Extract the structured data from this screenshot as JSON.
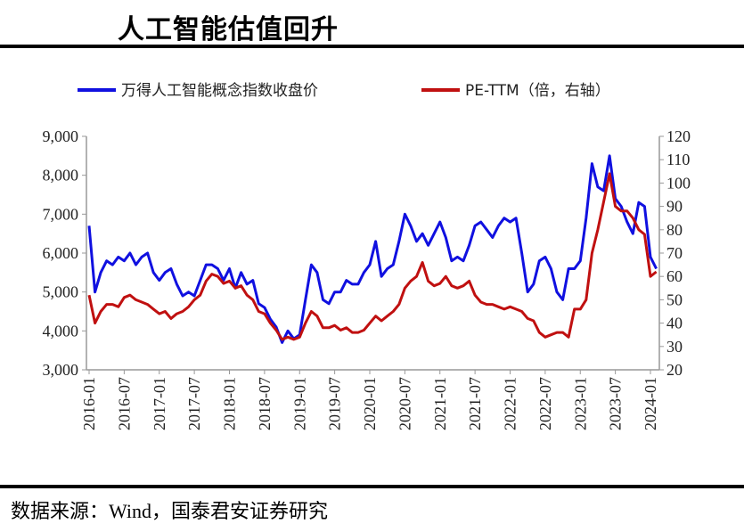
{
  "title": "人工智能估值回升",
  "source": "数据来源：Wind，国泰君安证券研究",
  "chart_data": {
    "type": "line",
    "title": "人工智能估值回升",
    "grid": false,
    "legend_position": "top",
    "x_tick_labels": [
      "2016-01",
      "2016-07",
      "2017-01",
      "2017-07",
      "2018-01",
      "2018-07",
      "2019-01",
      "2019-07",
      "2020-01",
      "2020-07",
      "2021-01",
      "2021-07",
      "2022-01",
      "2022-07",
      "2023-01",
      "2023-07",
      "2024-01"
    ],
    "y_left": {
      "range": [
        3000,
        9000
      ],
      "ticks": [
        "3,000",
        "4,000",
        "5,000",
        "6,000",
        "7,000",
        "8,000",
        "9,000"
      ]
    },
    "y_right": {
      "range": [
        20,
        120
      ],
      "ticks": [
        "20",
        "30",
        "40",
        "50",
        "60",
        "70",
        "80",
        "90",
        "100",
        "110",
        "120"
      ]
    },
    "x_start": "2016-01",
    "x_frequency": "monthly",
    "series": [
      {
        "name": "万得人工智能概念指数收盘价",
        "axis": "left",
        "color": "#1010e0",
        "values": [
          6700,
          5000,
          5500,
          5800,
          5700,
          5900,
          5800,
          6000,
          5700,
          5900,
          6000,
          5500,
          5300,
          5500,
          5600,
          5200,
          4900,
          5000,
          4900,
          5300,
          5700,
          5700,
          5600,
          5300,
          5600,
          5100,
          5500,
          5200,
          5300,
          4700,
          4600,
          4300,
          4100,
          3700,
          4000,
          3800,
          3900,
          4800,
          5700,
          5500,
          4800,
          4700,
          5000,
          5000,
          5300,
          5200,
          5200,
          5500,
          5700,
          6300,
          5400,
          5600,
          5700,
          6300,
          7000,
          6700,
          6300,
          6500,
          6200,
          6500,
          6800,
          6400,
          5800,
          5900,
          5800,
          6200,
          6700,
          6800,
          6600,
          6400,
          6700,
          6900,
          6800,
          6900,
          6000,
          5000,
          5200,
          5800,
          5900,
          5600,
          5000,
          4800,
          5600,
          5600,
          5800,
          6900,
          8300,
          7700,
          7600,
          8500,
          7400,
          7200,
          6800,
          6500,
          7300,
          7200,
          5900,
          5600
        ]
      },
      {
        "name": "PE-TTM（倍，右轴）",
        "axis": "right",
        "color": "#c01010",
        "values": [
          52,
          40,
          45,
          48,
          48,
          47,
          51,
          52,
          50,
          49,
          48,
          46,
          44,
          45,
          42,
          44,
          45,
          47,
          50,
          52,
          58,
          61,
          60,
          57,
          58,
          55,
          56,
          52,
          50,
          45,
          44,
          40,
          37,
          33,
          34,
          33,
          34,
          40,
          45,
          43,
          38,
          38,
          39,
          37,
          38,
          36,
          36,
          37,
          40,
          43,
          41,
          43,
          45,
          48,
          55,
          58,
          60,
          66,
          58,
          56,
          57,
          60,
          56,
          55,
          56,
          58,
          52,
          49,
          48,
          48,
          47,
          46,
          47,
          46,
          45,
          42,
          41,
          36,
          34,
          35,
          36,
          36,
          34,
          46,
          46,
          50,
          70,
          80,
          92,
          104,
          90,
          88,
          88,
          85,
          80,
          78,
          60,
          62
        ]
      }
    ]
  }
}
